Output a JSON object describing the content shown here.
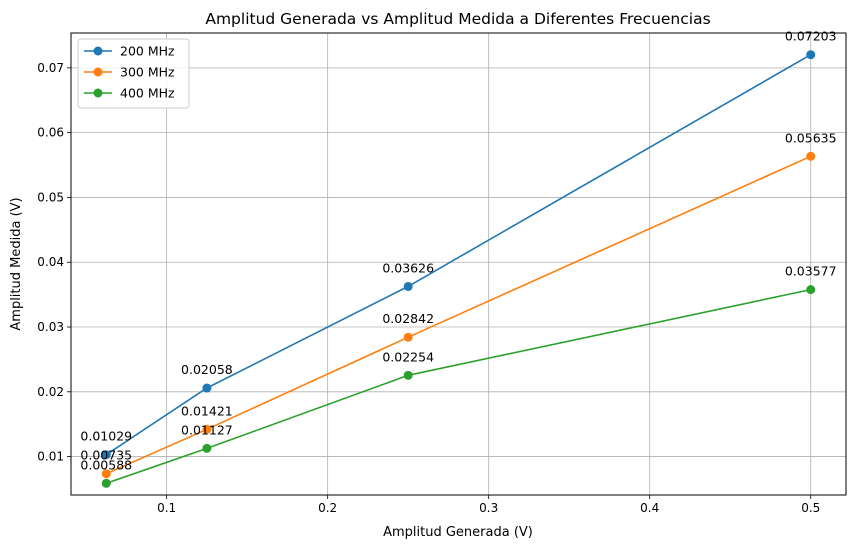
{
  "chart_data": {
    "type": "line",
    "title": "Amplitud Generada vs Amplitud Medida a Diferentes Frecuencias",
    "xlabel": "Amplitud Generada (V)",
    "ylabel": "Amplitud Medida (V)",
    "x": [
      0.0625,
      0.125,
      0.25,
      0.5
    ],
    "xlim": [
      0.0406,
      0.5219
    ],
    "ylim": [
      0.00407,
      0.07538
    ],
    "xticks": [
      0.1,
      0.2,
      0.3,
      0.4,
      0.5
    ],
    "xtick_labels": [
      "0.1",
      "0.2",
      "0.3",
      "0.4",
      "0.5"
    ],
    "yticks": [
      0.01,
      0.02,
      0.03,
      0.04,
      0.05,
      0.06,
      0.07
    ],
    "ytick_labels": [
      "0.01",
      "0.02",
      "0.03",
      "0.04",
      "0.05",
      "0.06",
      "0.07"
    ],
    "grid": true,
    "legend_position": "top-left",
    "series": [
      {
        "name": "200 MHz",
        "color": "#1f77b4",
        "values": [
          0.01029,
          0.02058,
          0.03626,
          0.07203
        ],
        "labels": [
          "0.01029",
          "0.02058",
          "0.03626",
          "0.07203"
        ]
      },
      {
        "name": "300 MHz",
        "color": "#ff7f0e",
        "values": [
          0.00735,
          0.01421,
          0.02842,
          0.05635
        ],
        "labels": [
          "0.00735",
          "0.01421",
          "0.02842",
          "0.05635"
        ]
      },
      {
        "name": "400 MHz",
        "color": "#2ca02c",
        "values": [
          0.00588,
          0.01127,
          0.02254,
          0.03577
        ],
        "labels": [
          "0.00588",
          "0.01127",
          "0.02254",
          "0.03577"
        ]
      }
    ]
  }
}
